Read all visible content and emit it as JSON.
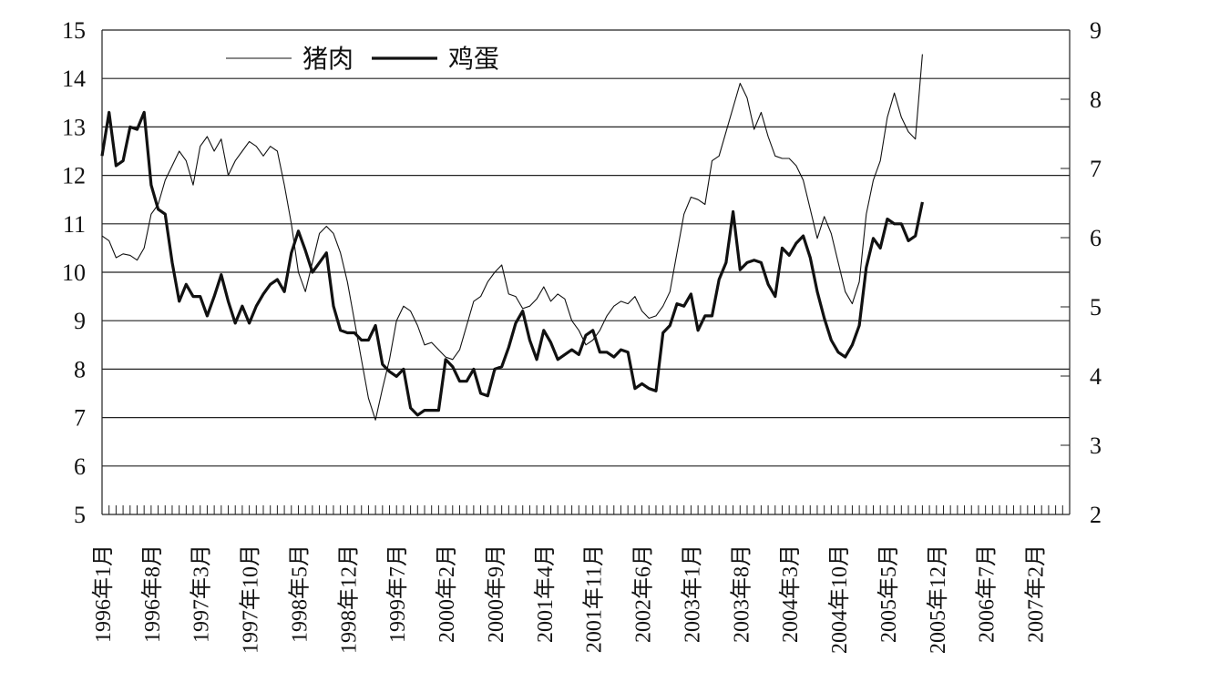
{
  "chart_data": {
    "type": "line",
    "title": "",
    "x_tick_labels": [
      "1996年1月",
      "1996年8月",
      "1997年3月",
      "1997年10月",
      "1998年5月",
      "1998年12月",
      "1999年7月",
      "2000年2月",
      "2000年9月",
      "2001年4月",
      "2001年11月",
      "2002年6月",
      "2003年1月",
      "2003年8月",
      "2004年3月",
      "2004年10月",
      "2005年5月",
      "2005年12月",
      "2006年7月",
      "2007年2月"
    ],
    "x_start": "1996-01",
    "x_end": "2007-07",
    "y_left": {
      "ticks": [
        "5",
        "6",
        "7",
        "8",
        "9",
        "10",
        "11",
        "12",
        "13",
        "14",
        "15"
      ],
      "range": [
        5,
        15
      ]
    },
    "y_right": {
      "ticks": [
        "2",
        "3",
        "4",
        "5",
        "6",
        "7",
        "8",
        "9"
      ],
      "range": [
        2,
        9
      ]
    },
    "grid": "horizontal",
    "legend_position": "top-left",
    "series": [
      {
        "name": "猪肉",
        "axis": "left",
        "style": "thin",
        "color": "#111111",
        "points": [
          [
            "1996-01",
            10.75
          ],
          [
            "1996-02",
            10.65
          ],
          [
            "1996-03",
            10.3
          ],
          [
            "1996-04",
            10.38
          ],
          [
            "1996-05",
            10.35
          ],
          [
            "1996-06",
            10.25
          ],
          [
            "1996-07",
            10.5
          ],
          [
            "1996-08",
            11.2
          ],
          [
            "1996-09",
            11.4
          ],
          [
            "1996-10",
            11.9
          ],
          [
            "1996-11",
            12.2
          ],
          [
            "1996-12",
            12.5
          ],
          [
            "1997-01",
            12.3
          ],
          [
            "1997-02",
            11.8
          ],
          [
            "1997-03",
            12.6
          ],
          [
            "1997-04",
            12.8
          ],
          [
            "1997-05",
            12.5
          ],
          [
            "1997-06",
            12.75
          ],
          [
            "1997-07",
            12.0
          ],
          [
            "1997-08",
            12.3
          ],
          [
            "1997-09",
            12.5
          ],
          [
            "1997-10",
            12.7
          ],
          [
            "1997-11",
            12.6
          ],
          [
            "1997-12",
            12.4
          ],
          [
            "1998-01",
            12.6
          ],
          [
            "1998-02",
            12.5
          ],
          [
            "1998-03",
            11.8
          ],
          [
            "1998-04",
            11.0
          ],
          [
            "1998-05",
            10.0
          ],
          [
            "1998-06",
            9.6
          ],
          [
            "1998-07",
            10.2
          ],
          [
            "1998-08",
            10.8
          ],
          [
            "1998-09",
            10.95
          ],
          [
            "1998-10",
            10.8
          ],
          [
            "1998-11",
            10.4
          ],
          [
            "1998-12",
            9.8
          ],
          [
            "1999-01",
            9.0
          ],
          [
            "1999-02",
            8.2
          ],
          [
            "1999-03",
            7.4
          ],
          [
            "1999-04",
            6.95
          ],
          [
            "1999-05",
            7.6
          ],
          [
            "1999-06",
            8.2
          ],
          [
            "1999-07",
            9.0
          ],
          [
            "1999-08",
            9.3
          ],
          [
            "1999-09",
            9.2
          ],
          [
            "1999-10",
            8.9
          ],
          [
            "1999-11",
            8.5
          ],
          [
            "1999-12",
            8.55
          ],
          [
            "2000-01",
            8.4
          ],
          [
            "2000-02",
            8.25
          ],
          [
            "2000-03",
            8.2
          ],
          [
            "2000-04",
            8.4
          ],
          [
            "2000-05",
            8.9
          ],
          [
            "2000-06",
            9.4
          ],
          [
            "2000-07",
            9.5
          ],
          [
            "2000-08",
            9.8
          ],
          [
            "2000-09",
            10.0
          ],
          [
            "2000-10",
            10.15
          ],
          [
            "2000-11",
            9.55
          ],
          [
            "2000-12",
            9.5
          ],
          [
            "2001-01",
            9.25
          ],
          [
            "2001-02",
            9.3
          ],
          [
            "2001-03",
            9.45
          ],
          [
            "2001-04",
            9.7
          ],
          [
            "2001-05",
            9.4
          ],
          [
            "2001-06",
            9.55
          ],
          [
            "2001-07",
            9.45
          ],
          [
            "2001-08",
            9.0
          ],
          [
            "2001-09",
            8.8
          ],
          [
            "2001-10",
            8.5
          ],
          [
            "2001-11",
            8.6
          ],
          [
            "2001-12",
            8.8
          ],
          [
            "2002-01",
            9.1
          ],
          [
            "2002-02",
            9.3
          ],
          [
            "2002-03",
            9.4
          ],
          [
            "2002-04",
            9.35
          ],
          [
            "2002-05",
            9.5
          ],
          [
            "2002-06",
            9.2
          ],
          [
            "2002-07",
            9.05
          ],
          [
            "2002-08",
            9.1
          ],
          [
            "2002-09",
            9.3
          ],
          [
            "2002-10",
            9.6
          ],
          [
            "2002-11",
            10.4
          ],
          [
            "2002-12",
            11.2
          ],
          [
            "2003-01",
            11.55
          ],
          [
            "2003-02",
            11.5
          ],
          [
            "2003-03",
            11.4
          ],
          [
            "2003-04",
            12.3
          ],
          [
            "2003-05",
            12.4
          ],
          [
            "2003-06",
            12.9
          ],
          [
            "2003-07",
            13.4
          ],
          [
            "2003-08",
            13.9
          ],
          [
            "2003-09",
            13.6
          ],
          [
            "2003-10",
            12.95
          ],
          [
            "2003-11",
            13.3
          ],
          [
            "2003-12",
            12.8
          ],
          [
            "2004-01",
            12.4
          ],
          [
            "2004-02",
            12.35
          ],
          [
            "2004-03",
            12.35
          ],
          [
            "2004-04",
            12.2
          ],
          [
            "2004-05",
            11.9
          ],
          [
            "2004-06",
            11.3
          ],
          [
            "2004-07",
            10.7
          ],
          [
            "2004-08",
            11.15
          ],
          [
            "2004-09",
            10.8
          ],
          [
            "2004-10",
            10.2
          ],
          [
            "2004-11",
            9.6
          ],
          [
            "2004-12",
            9.35
          ],
          [
            "2005-01",
            9.8
          ],
          [
            "2005-02",
            11.2
          ],
          [
            "2005-03",
            11.9
          ],
          [
            "2005-04",
            12.3
          ],
          [
            "2005-05",
            13.2
          ],
          [
            "2005-06",
            13.7
          ],
          [
            "2005-07",
            13.2
          ],
          [
            "2005-08",
            12.9
          ],
          [
            "2005-09",
            12.75
          ],
          [
            "2005-10",
            14.5
          ]
        ]
      },
      {
        "name": "鸡蛋",
        "axis": "left",
        "style": "thick",
        "color": "#111111",
        "points": [
          [
            "1996-01",
            12.4
          ],
          [
            "1996-02",
            13.3
          ],
          [
            "1996-03",
            12.2
          ],
          [
            "1996-04",
            12.3
          ],
          [
            "1996-05",
            13.0
          ],
          [
            "1996-06",
            12.95
          ],
          [
            "1996-07",
            13.3
          ],
          [
            "1996-08",
            11.8
          ],
          [
            "1996-09",
            11.3
          ],
          [
            "1996-10",
            11.2
          ],
          [
            "1996-11",
            10.2
          ],
          [
            "1996-12",
            9.4
          ],
          [
            "1997-01",
            9.75
          ],
          [
            "1997-02",
            9.5
          ],
          [
            "1997-03",
            9.5
          ],
          [
            "1997-04",
            9.1
          ],
          [
            "1997-05",
            9.5
          ],
          [
            "1997-06",
            9.95
          ],
          [
            "1997-07",
            9.4
          ],
          [
            "1997-08",
            8.95
          ],
          [
            "1997-09",
            9.3
          ],
          [
            "1997-10",
            8.95
          ],
          [
            "1997-11",
            9.3
          ],
          [
            "1997-12",
            9.55
          ],
          [
            "1998-01",
            9.75
          ],
          [
            "1998-02",
            9.85
          ],
          [
            "1998-03",
            9.6
          ],
          [
            "1998-04",
            10.4
          ],
          [
            "1998-05",
            10.85
          ],
          [
            "1998-06",
            10.45
          ],
          [
            "1998-07",
            10.0
          ],
          [
            "1998-08",
            10.2
          ],
          [
            "1998-09",
            10.4
          ],
          [
            "1998-10",
            9.3
          ],
          [
            "1998-11",
            8.8
          ],
          [
            "1998-12",
            8.75
          ],
          [
            "1999-01",
            8.75
          ],
          [
            "1999-02",
            8.6
          ],
          [
            "1999-03",
            8.6
          ],
          [
            "1999-04",
            8.9
          ],
          [
            "1999-05",
            8.1
          ],
          [
            "1999-06",
            7.95
          ],
          [
            "1999-07",
            7.85
          ],
          [
            "1999-08",
            8.0
          ],
          [
            "1999-09",
            7.2
          ],
          [
            "1999-10",
            7.05
          ],
          [
            "1999-11",
            7.15
          ],
          [
            "1999-12",
            7.15
          ],
          [
            "2000-01",
            7.15
          ],
          [
            "2000-02",
            8.2
          ],
          [
            "2000-03",
            8.05
          ],
          [
            "2000-04",
            7.75
          ],
          [
            "2000-05",
            7.75
          ],
          [
            "2000-06",
            8.0
          ],
          [
            "2000-07",
            7.5
          ],
          [
            "2000-08",
            7.45
          ],
          [
            "2000-09",
            8.0
          ],
          [
            "2000-10",
            8.05
          ],
          [
            "2000-11",
            8.45
          ],
          [
            "2000-12",
            8.95
          ],
          [
            "2001-01",
            9.2
          ],
          [
            "2001-02",
            8.6
          ],
          [
            "2001-03",
            8.2
          ],
          [
            "2001-04",
            8.8
          ],
          [
            "2001-05",
            8.55
          ],
          [
            "2001-06",
            8.2
          ],
          [
            "2001-07",
            8.3
          ],
          [
            "2001-08",
            8.4
          ],
          [
            "2001-09",
            8.3
          ],
          [
            "2001-10",
            8.7
          ],
          [
            "2001-11",
            8.8
          ],
          [
            "2001-12",
            8.35
          ],
          [
            "2002-01",
            8.35
          ],
          [
            "2002-02",
            8.25
          ],
          [
            "2002-03",
            8.4
          ],
          [
            "2002-04",
            8.35
          ],
          [
            "2002-05",
            7.6
          ],
          [
            "2002-06",
            7.7
          ],
          [
            "2002-07",
            7.6
          ],
          [
            "2002-08",
            7.55
          ],
          [
            "2002-09",
            8.75
          ],
          [
            "2002-10",
            8.9
          ],
          [
            "2002-11",
            9.35
          ],
          [
            "2002-12",
            9.3
          ],
          [
            "2003-01",
            9.55
          ],
          [
            "2003-02",
            8.8
          ],
          [
            "2003-03",
            9.1
          ],
          [
            "2003-04",
            9.1
          ],
          [
            "2003-05",
            9.85
          ],
          [
            "2003-06",
            10.2
          ],
          [
            "2003-07",
            11.25
          ],
          [
            "2003-08",
            10.05
          ],
          [
            "2003-09",
            10.2
          ],
          [
            "2003-10",
            10.25
          ],
          [
            "2003-11",
            10.2
          ],
          [
            "2003-12",
            9.75
          ],
          [
            "2004-01",
            9.5
          ],
          [
            "2004-02",
            10.5
          ],
          [
            "2004-03",
            10.35
          ],
          [
            "2004-04",
            10.6
          ],
          [
            "2004-05",
            10.75
          ],
          [
            "2004-06",
            10.3
          ],
          [
            "2004-07",
            9.6
          ],
          [
            "2004-08",
            9.05
          ],
          [
            "2004-09",
            8.6
          ],
          [
            "2004-10",
            8.35
          ],
          [
            "2004-11",
            8.25
          ],
          [
            "2004-12",
            8.5
          ],
          [
            "2005-01",
            8.9
          ],
          [
            "2005-02",
            10.1
          ],
          [
            "2005-03",
            10.7
          ],
          [
            "2005-04",
            10.5
          ],
          [
            "2005-05",
            11.1
          ],
          [
            "2005-06",
            11.0
          ],
          [
            "2005-07",
            11.0
          ],
          [
            "2005-08",
            10.65
          ],
          [
            "2005-09",
            10.75
          ],
          [
            "2005-10",
            11.45
          ]
        ]
      }
    ]
  }
}
